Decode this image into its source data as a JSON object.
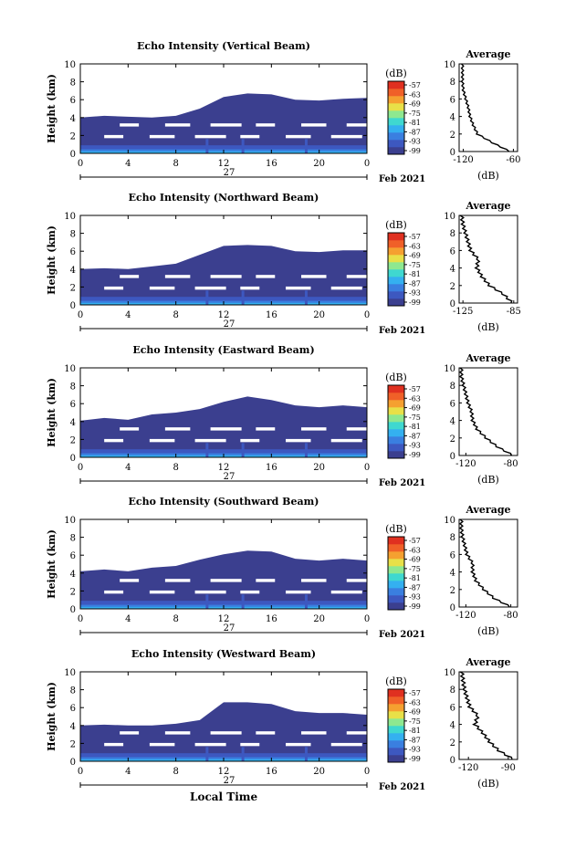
{
  "figure": {
    "bottom_label": "Local Time",
    "date_label": "Feb 2021",
    "day_label": "27",
    "unit_label": "(dB)",
    "profile_xlabel": "(dB)",
    "profile_title": "Average",
    "ylabel": "Height (km)",
    "xticks": [
      "0",
      "4",
      "8",
      "12",
      "16",
      "20",
      "0"
    ],
    "yticks": [
      "0",
      "2",
      "4",
      "6",
      "8",
      "10"
    ],
    "colorbar_ticks": [
      "-57",
      "-63",
      "-69",
      "-75",
      "-81",
      "-87",
      "-93",
      "-99"
    ],
    "colorbar_colors": [
      "#3b3f8f",
      "#3d58c0",
      "#3a7fe0",
      "#34b0f0",
      "#3fd8d0",
      "#8ee890",
      "#e8e048",
      "#f5a030",
      "#f06028",
      "#e03020"
    ]
  },
  "chart_data": [
    {
      "type": "heatmap",
      "title": "Echo Intensity (Vertical Beam)",
      "ylabel": "Height (km)",
      "xlabel": "Local Time",
      "ylim": [
        0,
        10
      ],
      "xlim": [
        0,
        24
      ],
      "x": [
        0,
        2,
        4,
        6,
        8,
        10,
        12,
        14,
        16,
        18,
        20,
        22,
        24
      ],
      "top_km": [
        4.0,
        4.2,
        4.1,
        4.0,
        4.2,
        5.0,
        6.3,
        6.7,
        6.6,
        6.0,
        5.9,
        6.1,
        6.2
      ],
      "profile": {
        "title": "Average",
        "xlabel": "(dB)",
        "xticks": [
          "-120",
          "-60"
        ],
        "xlim": [
          -125,
          -55
        ],
        "height_km": [
          0,
          1,
          2,
          3,
          4,
          5,
          6,
          7,
          8,
          9,
          10
        ],
        "db": [
          -64,
          -85,
          -103,
          -108,
          -112,
          -114,
          -117,
          -120,
          -121,
          -121,
          -121
        ]
      }
    },
    {
      "type": "heatmap",
      "title": "Echo Intensity (Northward Beam)",
      "ylabel": "Height (km)",
      "xlabel": "Local Time",
      "ylim": [
        0,
        10
      ],
      "xlim": [
        0,
        24
      ],
      "x": [
        0,
        2,
        4,
        6,
        8,
        10,
        12,
        14,
        16,
        18,
        20,
        22,
        24
      ],
      "top_km": [
        4.0,
        4.1,
        4.0,
        4.3,
        4.6,
        5.6,
        6.6,
        6.7,
        6.6,
        6.0,
        5.9,
        6.1,
        6.1
      ],
      "profile": {
        "title": "Average",
        "xlabel": "(dB)",
        "xticks": [
          "-125",
          "-85"
        ],
        "xlim": [
          -128,
          -82
        ],
        "height_km": [
          0,
          1,
          2,
          3,
          4,
          5,
          6,
          7,
          8,
          9,
          10
        ],
        "db": [
          -86,
          -93,
          -104,
          -110,
          -114,
          -113,
          -119,
          -121,
          -123,
          -125,
          -126
        ]
      }
    },
    {
      "type": "heatmap",
      "title": "Echo Intensity (Eastward Beam)",
      "ylabel": "Height (km)",
      "xlabel": "Local Time",
      "ylim": [
        0,
        10
      ],
      "xlim": [
        0,
        24
      ],
      "x": [
        0,
        2,
        4,
        6,
        8,
        10,
        12,
        14,
        16,
        18,
        20,
        22,
        24
      ],
      "top_km": [
        4.1,
        4.4,
        4.2,
        4.8,
        5.0,
        5.4,
        6.2,
        6.8,
        6.4,
        5.8,
        5.6,
        5.8,
        5.6
      ],
      "profile": {
        "title": "Average",
        "xlabel": "(dB)",
        "xticks": [
          "-120",
          "-80"
        ],
        "xlim": [
          -126,
          -74
        ],
        "height_km": [
          0,
          1,
          2,
          3,
          4,
          5,
          6,
          7,
          8,
          9,
          10
        ],
        "db": [
          -78,
          -92,
          -102,
          -110,
          -114,
          -115,
          -118,
          -120,
          -122,
          -124,
          -124
        ]
      }
    },
    {
      "type": "heatmap",
      "title": "Echo Intensity (Southward Beam)",
      "ylabel": "Height (km)",
      "xlabel": "Local Time",
      "ylim": [
        0,
        10
      ],
      "xlim": [
        0,
        24
      ],
      "x": [
        0,
        2,
        4,
        6,
        8,
        10,
        12,
        14,
        16,
        18,
        20,
        22,
        24
      ],
      "top_km": [
        4.2,
        4.4,
        4.2,
        4.6,
        4.8,
        5.5,
        6.1,
        6.5,
        6.4,
        5.6,
        5.4,
        5.6,
        5.4
      ],
      "profile": {
        "title": "Average",
        "xlabel": "(dB)",
        "xticks": [
          "-120",
          "-80"
        ],
        "xlim": [
          -126,
          -74
        ],
        "height_km": [
          0,
          1,
          2,
          3,
          4,
          5,
          6,
          7,
          8,
          9,
          10
        ],
        "db": [
          -80,
          -95,
          -104,
          -111,
          -114,
          -114,
          -119,
          -121,
          -123,
          -124,
          -124
        ]
      }
    },
    {
      "type": "heatmap",
      "title": "Echo Intensity (Westward Beam)",
      "ylabel": "Height (km)",
      "xlabel": "Local Time",
      "ylim": [
        0,
        10
      ],
      "xlim": [
        0,
        24
      ],
      "x": [
        0,
        2,
        4,
        6,
        8,
        10,
        12,
        14,
        16,
        18,
        20,
        22,
        24
      ],
      "top_km": [
        4.0,
        4.1,
        4.0,
        4.0,
        4.2,
        4.6,
        6.6,
        6.6,
        6.4,
        5.6,
        5.4,
        5.4,
        5.2
      ],
      "profile": {
        "title": "Average",
        "xlabel": "(dB)",
        "xticks": [
          "-120",
          "-90"
        ],
        "xlim": [
          -127,
          -83
        ],
        "height_km": [
          0,
          1,
          2,
          3,
          4,
          5,
          6,
          7,
          8,
          9,
          10
        ],
        "db": [
          -86,
          -97,
          -104,
          -109,
          -115,
          -113,
          -119,
          -121,
          -123,
          -124,
          -125
        ]
      }
    }
  ]
}
